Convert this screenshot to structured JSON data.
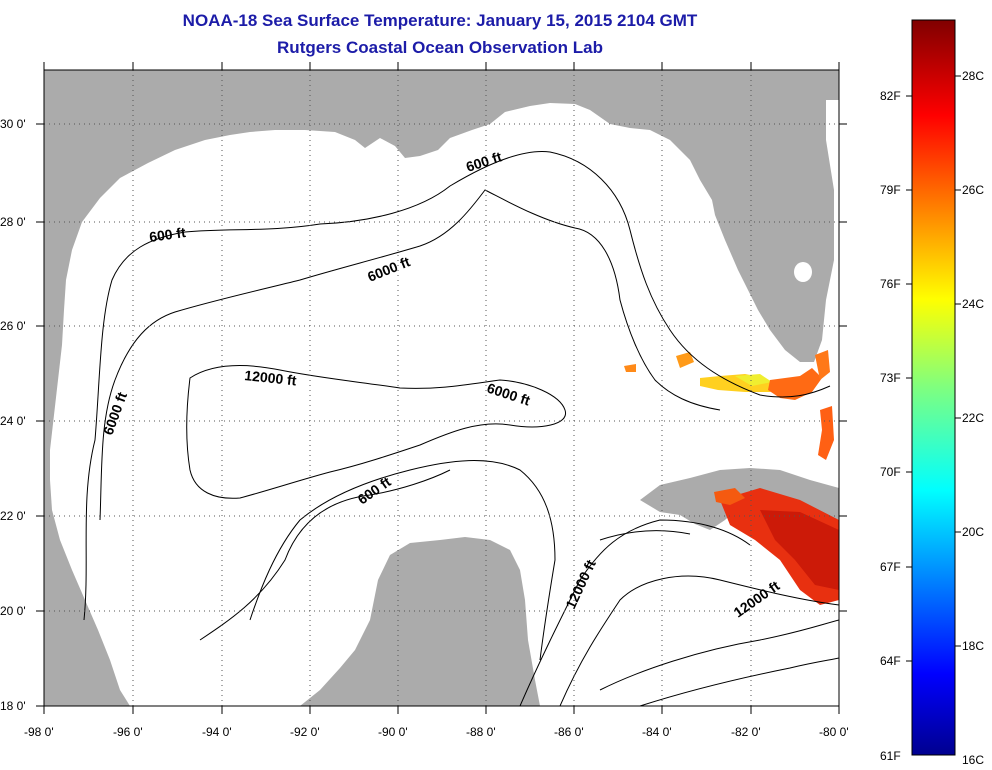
{
  "title": "NOAA-18 Sea Surface Temperature:  January 15, 2015 2104 GMT",
  "subtitle": "Rutgers Coastal Ocean Observation Lab",
  "map": {
    "lon_range": [
      -98,
      -80
    ],
    "lat_range": [
      18,
      31
    ],
    "x_tick_labels": [
      "-98 0'",
      "-96 0'",
      "-94 0'",
      "-92 0'",
      "-90 0'",
      "-88 0'",
      "-86 0'",
      "-84 0'",
      "-82 0'",
      "-80 0'"
    ],
    "y_tick_labels": [
      "18 0'",
      "20 0'",
      "22 0'",
      "24 0'",
      "26 0'",
      "28 0'",
      "30 0'"
    ],
    "grid": "dotted",
    "land_color": "#ababab",
    "ocean_color": "#ffffff",
    "contour_labels": [
      "600 ft",
      "600 ft",
      "6000 ft",
      "6000 ft",
      "6000 ft",
      "12000 ft",
      "600 ft",
      "12000 ft",
      "12000 ft"
    ]
  },
  "colorbar": {
    "range_c": [
      16,
      29.5
    ],
    "celsius_labels": [
      "28C",
      "26C",
      "24C",
      "22C",
      "20C",
      "18C",
      "16C"
    ],
    "fahrenheit_labels": [
      "82F",
      "79F",
      "76F",
      "73F",
      "70F",
      "67F",
      "64F",
      "61F"
    ],
    "colormap": "jet"
  }
}
